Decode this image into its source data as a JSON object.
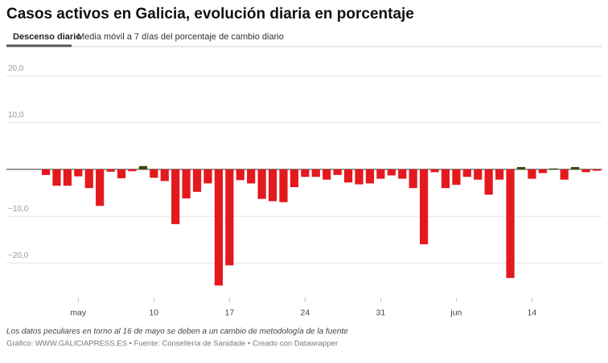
{
  "header": {
    "title": "Casos activos en Galicia, evolución diaria en porcentaje",
    "tabs": [
      "Descenso diario",
      "Media móvil a 7 días del porcentaje de cambio diario"
    ]
  },
  "chart_data": {
    "type": "bar",
    "categories": [
      null,
      null,
      null,
      "may",
      null,
      null,
      null,
      null,
      null,
      null,
      "10",
      null,
      null,
      null,
      null,
      null,
      null,
      "17",
      null,
      null,
      null,
      null,
      null,
      null,
      "24",
      null,
      null,
      null,
      null,
      null,
      null,
      "31",
      null,
      null,
      null,
      null,
      null,
      null,
      "jun",
      null,
      null,
      null,
      null,
      null,
      null,
      "14",
      null,
      null,
      null,
      null,
      null,
      null
    ],
    "values": [
      -1.2,
      -3.5,
      -3.5,
      -1.5,
      -4,
      -7.8,
      -0.5,
      -1.9,
      -0.4,
      0.7,
      -1.8,
      -2.5,
      -11.7,
      -6.2,
      -4.8,
      -3,
      -24.8,
      -20.5,
      -2.3,
      -3,
      -6.3,
      -6.8,
      -7,
      -3.8,
      -1.6,
      -1.6,
      -2.2,
      -1.2,
      -2.8,
      -3.2,
      -3,
      -2,
      -1.3,
      -2,
      -4,
      -16,
      -0.6,
      -4,
      -3.3,
      -1.6,
      -2.2,
      -5.4,
      -2.2,
      -23.2,
      0.5,
      -2,
      -0.8,
      0.2,
      -2.2,
      0.5,
      -0.6,
      -0.3
    ],
    "color": "#e3191e",
    "positive_color": "#3b4a0c",
    "ylim": [
      -26,
      21.5
    ],
    "yticks": [
      {
        "value": 20,
        "label": "20,0"
      },
      {
        "value": 10,
        "label": "10,0"
      },
      {
        "value": -10,
        "label": "−10,0"
      },
      {
        "value": -20,
        "label": "−20,0"
      }
    ],
    "grid": true
  },
  "footer": {
    "note": "Los datos peculiares en torno al 16 de mayo se deben a un cambio de metodología de la fuente",
    "credits": "Gráfico: WWW.GALICIAPRESS.ES • Fuente: Consellería de Sanidade • Creado con Datawrapper"
  }
}
